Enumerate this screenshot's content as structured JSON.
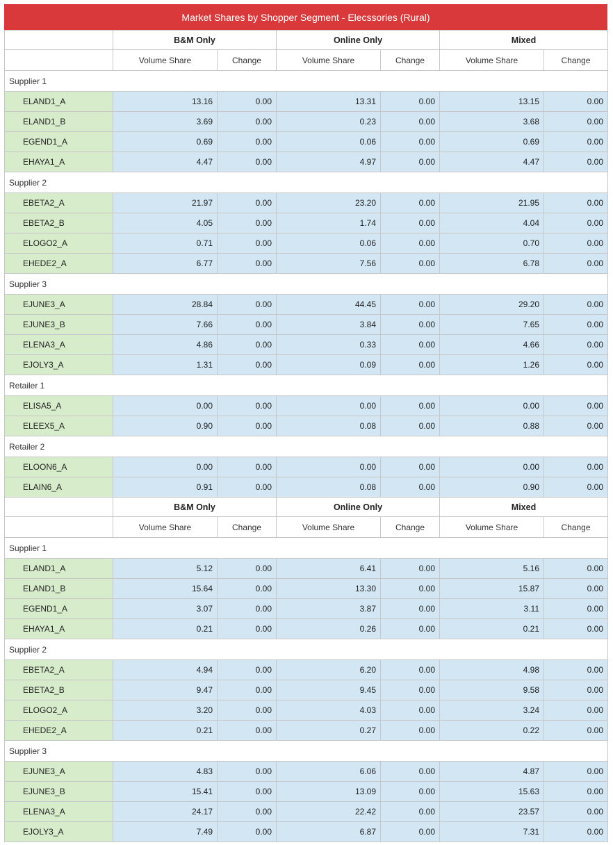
{
  "title": "Market Shares by Shopper Segment - Elecssories (Rural)",
  "segments": [
    "B&M Only",
    "Online Only",
    "Mixed"
  ],
  "subheaders": [
    "Volume Share",
    "Change"
  ],
  "colors": {
    "title_bg": "#d9393a",
    "brand_bg": "#d7eccb",
    "value_bg": "#d2e6f3"
  },
  "sections": [
    {
      "groups": [
        {
          "name": "Supplier 1",
          "rows": [
            {
              "brand": "ELAND1_A",
              "values": [
                "13.16",
                "0.00",
                "13.31",
                "0.00",
                "13.15",
                "0.00"
              ]
            },
            {
              "brand": "ELAND1_B",
              "values": [
                "3.69",
                "0.00",
                "0.23",
                "0.00",
                "3.68",
                "0.00"
              ]
            },
            {
              "brand": "EGEND1_A",
              "values": [
                "0.69",
                "0.00",
                "0.06",
                "0.00",
                "0.69",
                "0.00"
              ]
            },
            {
              "brand": "EHAYA1_A",
              "values": [
                "4.47",
                "0.00",
                "4.97",
                "0.00",
                "4.47",
                "0.00"
              ]
            }
          ]
        },
        {
          "name": "Supplier 2",
          "rows": [
            {
              "brand": "EBETA2_A",
              "values": [
                "21.97",
                "0.00",
                "23.20",
                "0.00",
                "21.95",
                "0.00"
              ]
            },
            {
              "brand": "EBETA2_B",
              "values": [
                "4.05",
                "0.00",
                "1.74",
                "0.00",
                "4.04",
                "0.00"
              ]
            },
            {
              "brand": "ELOGO2_A",
              "values": [
                "0.71",
                "0.00",
                "0.06",
                "0.00",
                "0.70",
                "0.00"
              ]
            },
            {
              "brand": "EHEDE2_A",
              "values": [
                "6.77",
                "0.00",
                "7.56",
                "0.00",
                "6.78",
                "0.00"
              ]
            }
          ]
        },
        {
          "name": "Supplier 3",
          "rows": [
            {
              "brand": "EJUNE3_A",
              "values": [
                "28.84",
                "0.00",
                "44.45",
                "0.00",
                "29.20",
                "0.00"
              ]
            },
            {
              "brand": "EJUNE3_B",
              "values": [
                "7.66",
                "0.00",
                "3.84",
                "0.00",
                "7.65",
                "0.00"
              ]
            },
            {
              "brand": "ELENA3_A",
              "values": [
                "4.86",
                "0.00",
                "0.33",
                "0.00",
                "4.66",
                "0.00"
              ]
            },
            {
              "brand": "EJOLY3_A",
              "values": [
                "1.31",
                "0.00",
                "0.09",
                "0.00",
                "1.26",
                "0.00"
              ]
            }
          ]
        },
        {
          "name": "Retailer 1",
          "rows": [
            {
              "brand": "ELISA5_A",
              "values": [
                "0.00",
                "0.00",
                "0.00",
                "0.00",
                "0.00",
                "0.00"
              ]
            },
            {
              "brand": "ELEEX5_A",
              "values": [
                "0.90",
                "0.00",
                "0.08",
                "0.00",
                "0.88",
                "0.00"
              ]
            }
          ]
        },
        {
          "name": "Retailer 2",
          "rows": [
            {
              "brand": "ELOON6_A",
              "values": [
                "0.00",
                "0.00",
                "0.00",
                "0.00",
                "0.00",
                "0.00"
              ]
            },
            {
              "brand": "ELAIN6_A",
              "values": [
                "0.91",
                "0.00",
                "0.08",
                "0.00",
                "0.90",
                "0.00"
              ]
            }
          ]
        }
      ]
    },
    {
      "groups": [
        {
          "name": "Supplier 1",
          "rows": [
            {
              "brand": "ELAND1_A",
              "values": [
                "5.12",
                "0.00",
                "6.41",
                "0.00",
                "5.16",
                "0.00"
              ]
            },
            {
              "brand": "ELAND1_B",
              "values": [
                "15.64",
                "0.00",
                "13.30",
                "0.00",
                "15.87",
                "0.00"
              ]
            },
            {
              "brand": "EGEND1_A",
              "values": [
                "3.07",
                "0.00",
                "3.87",
                "0.00",
                "3.11",
                "0.00"
              ]
            },
            {
              "brand": "EHAYA1_A",
              "values": [
                "0.21",
                "0.00",
                "0.26",
                "0.00",
                "0.21",
                "0.00"
              ]
            }
          ]
        },
        {
          "name": "Supplier 2",
          "rows": [
            {
              "brand": "EBETA2_A",
              "values": [
                "4.94",
                "0.00",
                "6.20",
                "0.00",
                "4.98",
                "0.00"
              ]
            },
            {
              "brand": "EBETA2_B",
              "values": [
                "9.47",
                "0.00",
                "9.45",
                "0.00",
                "9.58",
                "0.00"
              ]
            },
            {
              "brand": "ELOGO2_A",
              "values": [
                "3.20",
                "0.00",
                "4.03",
                "0.00",
                "3.24",
                "0.00"
              ]
            },
            {
              "brand": "EHEDE2_A",
              "values": [
                "0.21",
                "0.00",
                "0.27",
                "0.00",
                "0.22",
                "0.00"
              ]
            }
          ]
        },
        {
          "name": "Supplier 3",
          "rows": [
            {
              "brand": "EJUNE3_A",
              "values": [
                "4.83",
                "0.00",
                "6.06",
                "0.00",
                "4.87",
                "0.00"
              ]
            },
            {
              "brand": "EJUNE3_B",
              "values": [
                "15.41",
                "0.00",
                "13.09",
                "0.00",
                "15.63",
                "0.00"
              ]
            },
            {
              "brand": "ELENA3_A",
              "values": [
                "24.17",
                "0.00",
                "22.42",
                "0.00",
                "23.57",
                "0.00"
              ]
            },
            {
              "brand": "EJOLY3_A",
              "values": [
                "7.49",
                "0.00",
                "6.87",
                "0.00",
                "7.31",
                "0.00"
              ]
            }
          ]
        }
      ]
    }
  ]
}
